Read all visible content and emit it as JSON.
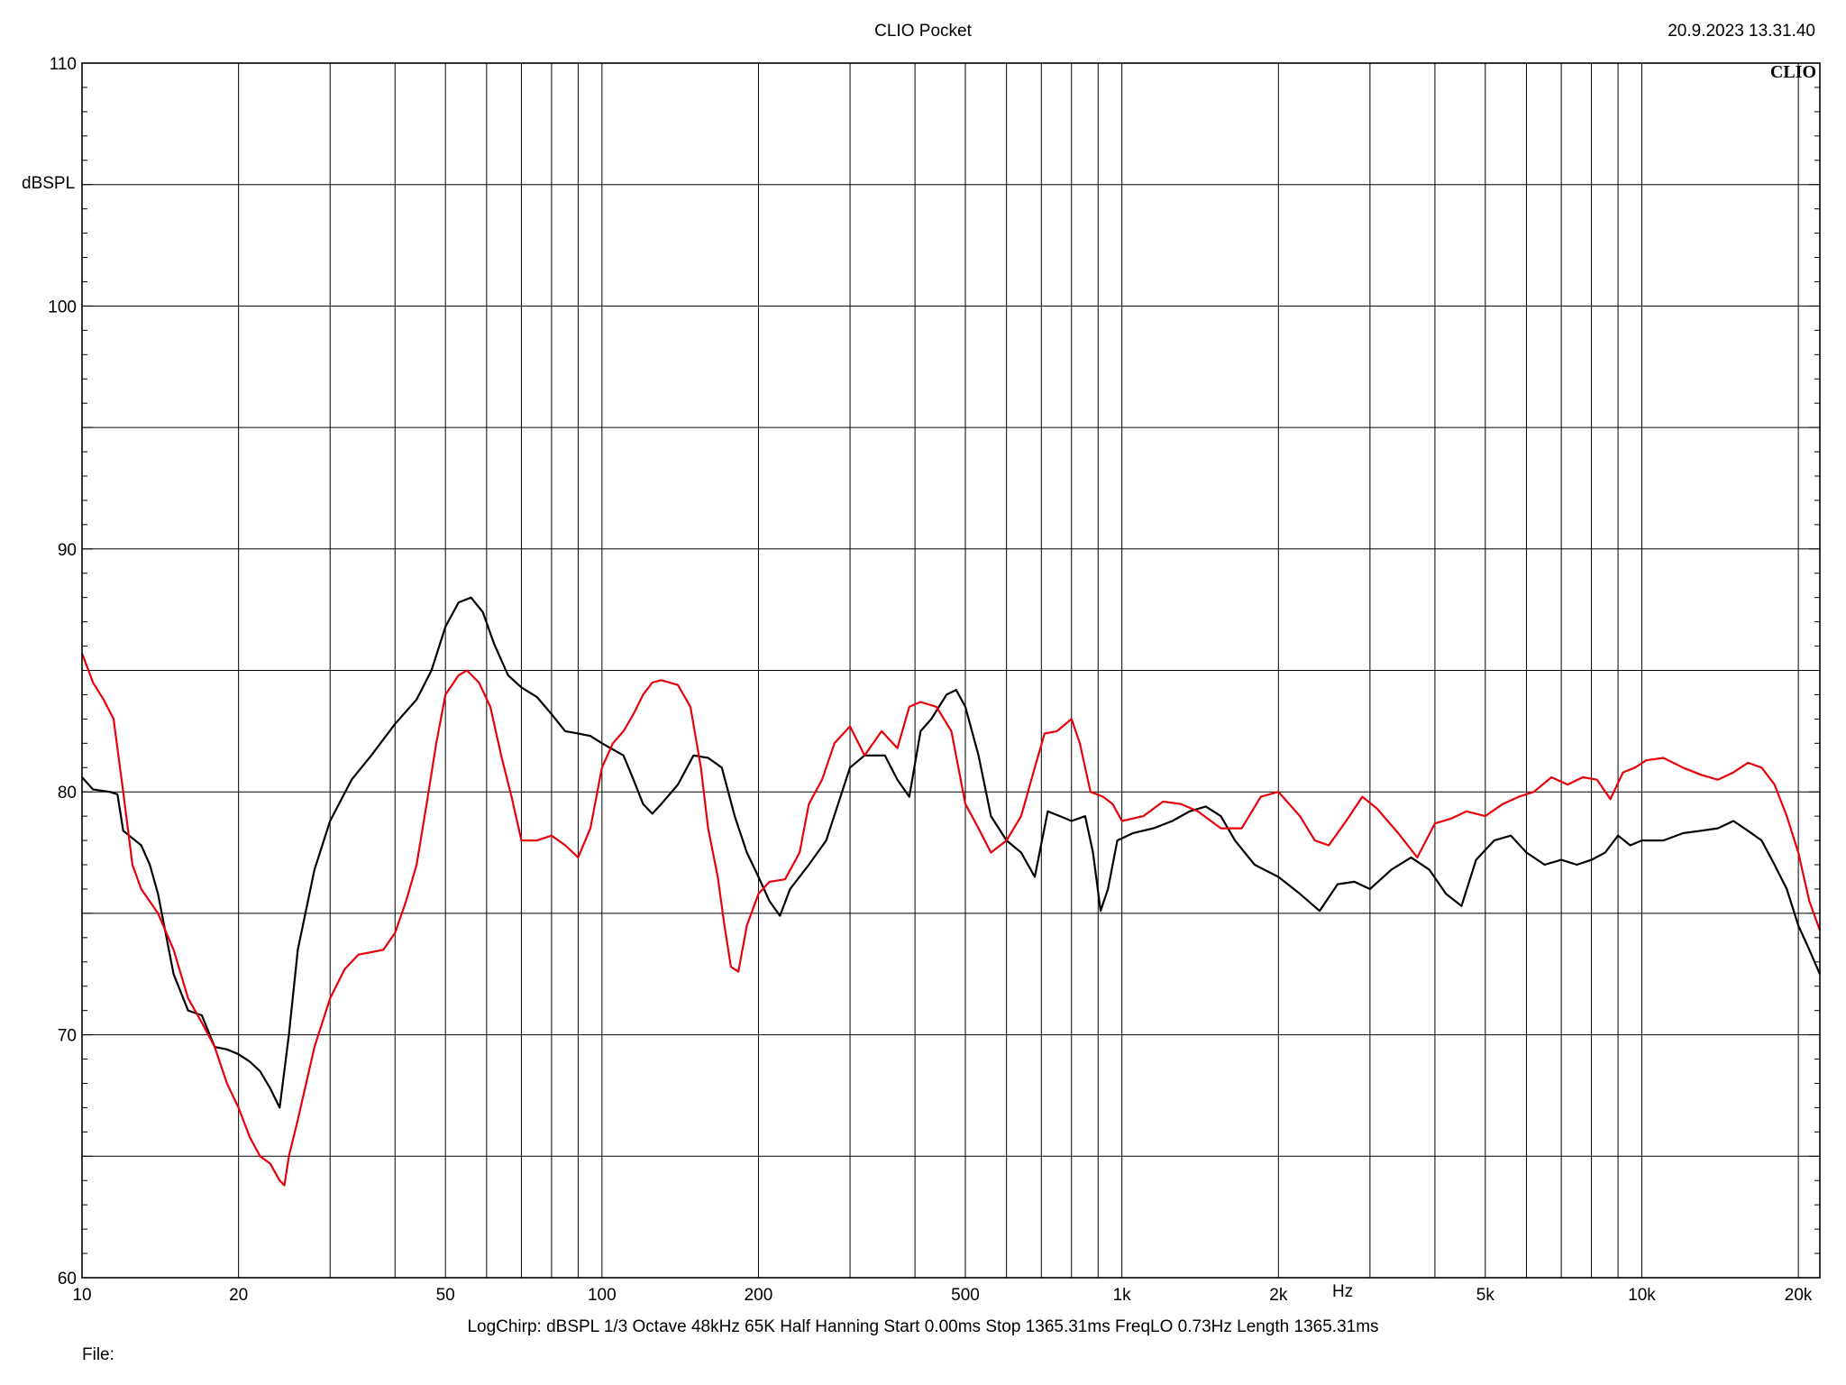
{
  "header": {
    "title": "CLIO Pocket",
    "timestamp": "20.9.2023 13.31.40",
    "logo": "CLIO"
  },
  "footer": {
    "settings": "LogChirp:  dBSPL   1/3 Octave   48kHz   65K   Half Hanning   Start 0.00ms    Stop 1365.31ms    FreqLO 0.73Hz    Length 1365.31ms",
    "file_label": "File:"
  },
  "colors": {
    "black_trace": "#000000",
    "red_trace": "#e8000b",
    "grid": "#000000"
  },
  "chart_data": {
    "type": "line",
    "title": "CLIO Pocket",
    "ylabel": "dBSPL",
    "xlabel": "Hz",
    "x_scale": "log",
    "xlim": [
      10,
      22000
    ],
    "ylim": [
      60,
      110
    ],
    "grid": true,
    "y_ticks": [
      {
        "value": 110,
        "label": "110"
      },
      {
        "value": 100,
        "label": "100"
      },
      {
        "value": 90,
        "label": "90"
      },
      {
        "value": 80,
        "label": "80"
      },
      {
        "value": 70,
        "label": "70"
      },
      {
        "value": 60,
        "label": "60"
      }
    ],
    "y_minor": [
      65,
      75,
      85,
      95,
      105
    ],
    "x_ticks": [
      {
        "value": 10,
        "label": "10"
      },
      {
        "value": 20,
        "label": "20"
      },
      {
        "value": 50,
        "label": "50"
      },
      {
        "value": 100,
        "label": "100"
      },
      {
        "value": 200,
        "label": "200"
      },
      {
        "value": 500,
        "label": "500"
      },
      {
        "value": 1000,
        "label": "1k"
      },
      {
        "value": 2000,
        "label": "2k"
      },
      {
        "value": 5000,
        "label": "5k"
      },
      {
        "value": 10000,
        "label": "10k"
      },
      {
        "value": 20000,
        "label": "20k"
      }
    ],
    "x_grid": [
      20,
      30,
      40,
      50,
      60,
      70,
      80,
      90,
      100,
      200,
      300,
      400,
      500,
      600,
      700,
      800,
      900,
      1000,
      2000,
      3000,
      4000,
      5000,
      6000,
      7000,
      8000,
      9000,
      10000,
      20000
    ],
    "series": [
      {
        "color": "#000000",
        "points": [
          [
            10,
            80.6
          ],
          [
            10.5,
            80.1
          ],
          [
            11.3,
            80.0
          ],
          [
            11.7,
            79.9
          ],
          [
            12,
            78.4
          ],
          [
            13,
            77.8
          ],
          [
            13.5,
            77.0
          ],
          [
            14,
            75.8
          ],
          [
            15,
            72.5
          ],
          [
            16,
            71.0
          ],
          [
            17,
            70.8
          ],
          [
            18,
            69.5
          ],
          [
            19,
            69.4
          ],
          [
            20,
            69.2
          ],
          [
            21,
            68.9
          ],
          [
            22,
            68.5
          ],
          [
            23,
            67.8
          ],
          [
            24,
            67.0
          ],
          [
            25,
            70.0
          ],
          [
            26,
            73.5
          ],
          [
            28,
            76.8
          ],
          [
            30,
            78.8
          ],
          [
            33,
            80.5
          ],
          [
            36,
            81.5
          ],
          [
            40,
            82.8
          ],
          [
            44,
            83.8
          ],
          [
            47,
            85.0
          ],
          [
            50,
            86.8
          ],
          [
            53,
            87.8
          ],
          [
            56,
            88.0
          ],
          [
            59,
            87.4
          ],
          [
            62,
            86.1
          ],
          [
            66,
            84.8
          ],
          [
            70,
            84.3
          ],
          [
            75,
            83.9
          ],
          [
            80,
            83.2
          ],
          [
            85,
            82.5
          ],
          [
            90,
            82.4
          ],
          [
            95,
            82.3
          ],
          [
            100,
            82.0
          ],
          [
            110,
            81.5
          ],
          [
            115,
            80.5
          ],
          [
            120,
            79.5
          ],
          [
            125,
            79.1
          ],
          [
            130,
            79.5
          ],
          [
            140,
            80.3
          ],
          [
            150,
            81.5
          ],
          [
            160,
            81.4
          ],
          [
            170,
            81.0
          ],
          [
            180,
            79.0
          ],
          [
            190,
            77.5
          ],
          [
            200,
            76.5
          ],
          [
            210,
            75.5
          ],
          [
            220,
            74.9
          ],
          [
            230,
            76.0
          ],
          [
            250,
            77.0
          ],
          [
            270,
            78.0
          ],
          [
            300,
            81.0
          ],
          [
            320,
            81.5
          ],
          [
            350,
            81.5
          ],
          [
            370,
            80.5
          ],
          [
            390,
            79.8
          ],
          [
            410,
            82.5
          ],
          [
            430,
            83.0
          ],
          [
            460,
            84.0
          ],
          [
            480,
            84.2
          ],
          [
            500,
            83.5
          ],
          [
            530,
            81.5
          ],
          [
            560,
            79.0
          ],
          [
            600,
            78.0
          ],
          [
            640,
            77.5
          ],
          [
            680,
            76.5
          ],
          [
            720,
            79.2
          ],
          [
            760,
            79.0
          ],
          [
            800,
            78.8
          ],
          [
            850,
            79.0
          ],
          [
            880,
            77.5
          ],
          [
            910,
            75.1
          ],
          [
            940,
            76.0
          ],
          [
            980,
            78.0
          ],
          [
            1050,
            78.3
          ],
          [
            1150,
            78.5
          ],
          [
            1250,
            78.8
          ],
          [
            1350,
            79.2
          ],
          [
            1450,
            79.4
          ],
          [
            1550,
            79.0
          ],
          [
            1650,
            78.0
          ],
          [
            1800,
            77.0
          ],
          [
            2000,
            76.5
          ],
          [
            2200,
            75.8
          ],
          [
            2400,
            75.1
          ],
          [
            2600,
            76.2
          ],
          [
            2800,
            76.3
          ],
          [
            3000,
            76.0
          ],
          [
            3300,
            76.8
          ],
          [
            3600,
            77.3
          ],
          [
            3900,
            76.8
          ],
          [
            4200,
            75.8
          ],
          [
            4500,
            75.3
          ],
          [
            4800,
            77.2
          ],
          [
            5200,
            78.0
          ],
          [
            5600,
            78.2
          ],
          [
            6000,
            77.5
          ],
          [
            6500,
            77.0
          ],
          [
            7000,
            77.2
          ],
          [
            7500,
            77.0
          ],
          [
            8000,
            77.2
          ],
          [
            8500,
            77.5
          ],
          [
            9000,
            78.2
          ],
          [
            9500,
            77.8
          ],
          [
            10000,
            78.0
          ],
          [
            11000,
            78.0
          ],
          [
            12000,
            78.3
          ],
          [
            13000,
            78.4
          ],
          [
            14000,
            78.5
          ],
          [
            15000,
            78.8
          ],
          [
            16000,
            78.4
          ],
          [
            17000,
            78.0
          ],
          [
            18000,
            77.0
          ],
          [
            19000,
            76.0
          ],
          [
            20000,
            74.5
          ],
          [
            21000,
            73.5
          ],
          [
            22000,
            72.5
          ]
        ]
      },
      {
        "color": "#e8000b",
        "points": [
          [
            10,
            85.7
          ],
          [
            10.5,
            84.5
          ],
          [
            11,
            83.8
          ],
          [
            11.5,
            83.0
          ],
          [
            12,
            80.0
          ],
          [
            12.5,
            77.0
          ],
          [
            13,
            76.0
          ],
          [
            14,
            75.0
          ],
          [
            15,
            73.5
          ],
          [
            16,
            71.5
          ],
          [
            17,
            70.5
          ],
          [
            18,
            69.5
          ],
          [
            19,
            68.0
          ],
          [
            20,
            67.0
          ],
          [
            21,
            65.8
          ],
          [
            22,
            65.0
          ],
          [
            23,
            64.7
          ],
          [
            24,
            64.0
          ],
          [
            24.5,
            63.8
          ],
          [
            25,
            65.0
          ],
          [
            26,
            66.5
          ],
          [
            28,
            69.5
          ],
          [
            30,
            71.5
          ],
          [
            32,
            72.7
          ],
          [
            34,
            73.3
          ],
          [
            36,
            73.4
          ],
          [
            38,
            73.5
          ],
          [
            40,
            74.2
          ],
          [
            42,
            75.5
          ],
          [
            44,
            77.0
          ],
          [
            46,
            79.5
          ],
          [
            48,
            82.0
          ],
          [
            50,
            84.0
          ],
          [
            53,
            84.8
          ],
          [
            55,
            85.0
          ],
          [
            58,
            84.5
          ],
          [
            61,
            83.5
          ],
          [
            64,
            81.5
          ],
          [
            67,
            79.8
          ],
          [
            70,
            78.0
          ],
          [
            75,
            78.0
          ],
          [
            80,
            78.2
          ],
          [
            85,
            77.8
          ],
          [
            90,
            77.3
          ],
          [
            95,
            78.5
          ],
          [
            100,
            81.0
          ],
          [
            105,
            82.0
          ],
          [
            110,
            82.5
          ],
          [
            115,
            83.2
          ],
          [
            120,
            84.0
          ],
          [
            125,
            84.5
          ],
          [
            130,
            84.6
          ],
          [
            140,
            84.4
          ],
          [
            148,
            83.5
          ],
          [
            155,
            81.0
          ],
          [
            160,
            78.5
          ],
          [
            167,
            76.5
          ],
          [
            172,
            74.5
          ],
          [
            177,
            72.8
          ],
          [
            183,
            72.6
          ],
          [
            190,
            74.5
          ],
          [
            200,
            75.8
          ],
          [
            210,
            76.3
          ],
          [
            225,
            76.4
          ],
          [
            240,
            77.5
          ],
          [
            250,
            79.5
          ],
          [
            265,
            80.5
          ],
          [
            280,
            82.0
          ],
          [
            300,
            82.7
          ],
          [
            320,
            81.5
          ],
          [
            345,
            82.5
          ],
          [
            370,
            81.8
          ],
          [
            390,
            83.5
          ],
          [
            410,
            83.7
          ],
          [
            440,
            83.5
          ],
          [
            470,
            82.5
          ],
          [
            500,
            79.5
          ],
          [
            530,
            78.5
          ],
          [
            560,
            77.5
          ],
          [
            600,
            78.0
          ],
          [
            640,
            79.0
          ],
          [
            680,
            81.0
          ],
          [
            710,
            82.4
          ],
          [
            750,
            82.5
          ],
          [
            800,
            83.0
          ],
          [
            830,
            82.0
          ],
          [
            870,
            80.0
          ],
          [
            920,
            79.8
          ],
          [
            960,
            79.5
          ],
          [
            1000,
            78.8
          ],
          [
            1100,
            79.0
          ],
          [
            1200,
            79.6
          ],
          [
            1300,
            79.5
          ],
          [
            1400,
            79.2
          ],
          [
            1550,
            78.5
          ],
          [
            1700,
            78.5
          ],
          [
            1850,
            79.8
          ],
          [
            2000,
            80.0
          ],
          [
            2200,
            79.0
          ],
          [
            2350,
            78.0
          ],
          [
            2500,
            77.8
          ],
          [
            2700,
            78.8
          ],
          [
            2900,
            79.8
          ],
          [
            3100,
            79.3
          ],
          [
            3400,
            78.3
          ],
          [
            3700,
            77.3
          ],
          [
            4000,
            78.7
          ],
          [
            4300,
            78.9
          ],
          [
            4600,
            79.2
          ],
          [
            5000,
            79.0
          ],
          [
            5400,
            79.5
          ],
          [
            5800,
            79.8
          ],
          [
            6200,
            80.0
          ],
          [
            6700,
            80.6
          ],
          [
            7200,
            80.3
          ],
          [
            7700,
            80.6
          ],
          [
            8200,
            80.5
          ],
          [
            8700,
            79.7
          ],
          [
            9200,
            80.8
          ],
          [
            9700,
            81.0
          ],
          [
            10200,
            81.3
          ],
          [
            11000,
            81.4
          ],
          [
            12000,
            81.0
          ],
          [
            13000,
            80.7
          ],
          [
            14000,
            80.5
          ],
          [
            15000,
            80.8
          ],
          [
            16000,
            81.2
          ],
          [
            17000,
            81.0
          ],
          [
            18000,
            80.3
          ],
          [
            19000,
            79.0
          ],
          [
            20000,
            77.5
          ],
          [
            21000,
            75.5
          ],
          [
            22000,
            74.3
          ]
        ]
      }
    ]
  }
}
